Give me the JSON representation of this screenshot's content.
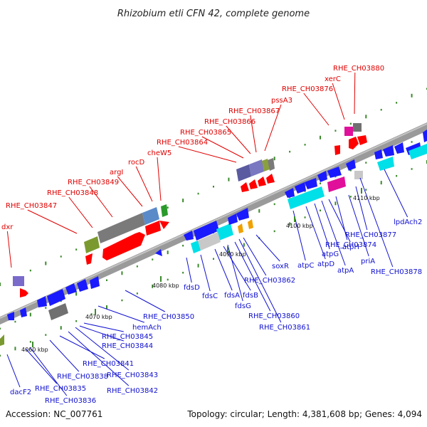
{
  "title": "Rhizobium etli CFN 42, complete genome",
  "footer": {
    "accession": "Accession: NC_007761",
    "topology": "Topology: circular; Length: 4,381,608 bp; Genes: 4,094"
  },
  "colors": {
    "forward_label": "#e00000",
    "reverse_label": "#1010d0",
    "backbone": "#9a9a9a",
    "dot": "#3a8a2a"
  },
  "ticks": [
    "4060 kbp",
    "4070 kbp",
    "4080 kbp",
    "4090 kbp",
    "4100 kbp",
    "4110 kbp"
  ],
  "labels_top": [
    "dxr",
    "RHE_CH03847",
    "RHE_CH03848",
    "RHE_CH03849",
    "argI",
    "rocD",
    "cheW5",
    "RHE_CH03864",
    "RHE_CH03865",
    "RHE_CH03866",
    "RHE_CH03867",
    "pssA3",
    "RHE_CH03876",
    "xerC",
    "RHE_CH03880"
  ],
  "labels_bottom": [
    "dacF2",
    "RHE_CH03835",
    "RHE_CH03836",
    "RHE_CH03838",
    "RHE_CH03841",
    "RHE_CH03842",
    "RHE_CH03843",
    "RHE_CH03844",
    "RHE_CH03845",
    "hemAch",
    "RHE_CH03850",
    "fdsD",
    "fdsC",
    "fdsA",
    "fdsB",
    "fdsG",
    "RHE_CH03860",
    "RHE_CH03861",
    "RHE_CH03862",
    "soxR",
    "atpC",
    "atpD",
    "atpG",
    "atpA",
    "atpH",
    "RHE_CH03874",
    "priA",
    "RHE_CH03877",
    "RHE_CH03878",
    "lpdAch2"
  ]
}
